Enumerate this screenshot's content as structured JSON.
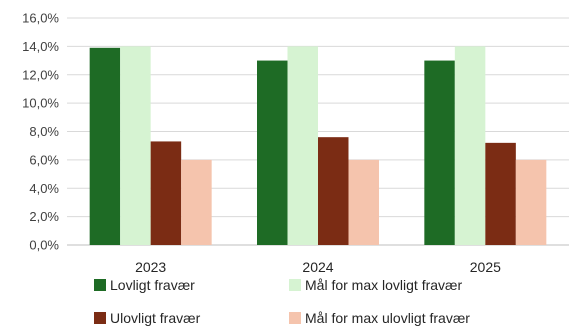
{
  "chart_data": {
    "type": "bar",
    "categories": [
      "2023",
      "2024",
      "2025"
    ],
    "series": [
      {
        "name": "Lovligt fravær",
        "values": [
          13.9,
          13.0,
          13.0
        ],
        "color": "#1e6b25"
      },
      {
        "name": "Mål for max lovligt fravær",
        "values": [
          14.0,
          14.0,
          14.0
        ],
        "color": "#d6f3d2"
      },
      {
        "name": "Ulovligt fravær",
        "values": [
          7.3,
          7.6,
          7.2
        ],
        "color": "#7b2c14"
      },
      {
        "name": "Mål for max ulovligt fravær",
        "values": [
          6.0,
          6.0,
          6.0
        ],
        "color": "#f5c4ad"
      }
    ],
    "ylim": [
      0,
      16
    ],
    "yticks": [
      "0,0%",
      "2,0%",
      "4,0%",
      "6,0%",
      "8,0%",
      "10,0%",
      "12,0%",
      "14,0%",
      "16,0%"
    ],
    "grid": true,
    "legend_position": "bottom"
  }
}
